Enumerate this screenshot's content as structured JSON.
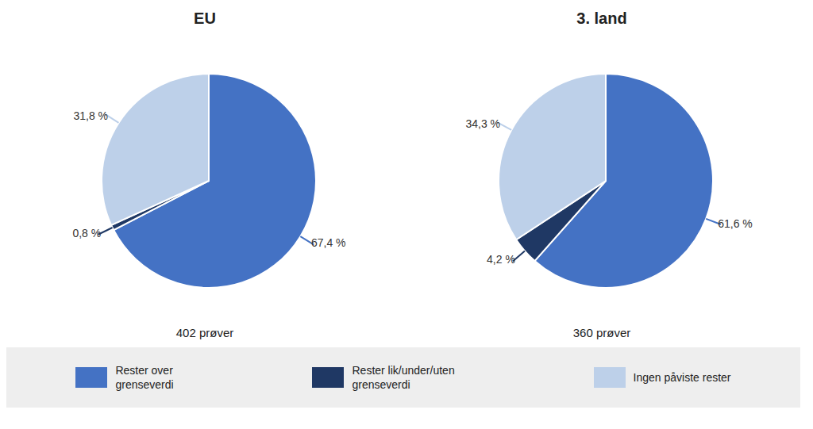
{
  "chart_data": [
    {
      "type": "pie",
      "title": "EU",
      "subtitle": "402 prøver",
      "categories": [
        "Rester over\ngrenseverdi",
        "Rester lik/under/uten\ngrenseverdi",
        "Ingen påviste rester"
      ],
      "values": [
        67.4,
        0.8,
        31.8
      ],
      "value_labels": [
        "67,4 %",
        "0,8 %",
        "31,8 %"
      ],
      "colors": [
        "#4472C4",
        "#1F3864",
        "#BDD0E9"
      ],
      "data_labels": true,
      "legend": "bottom"
    },
    {
      "type": "pie",
      "title": "3. land",
      "subtitle": "360 prøver",
      "categories": [
        "Rester over\ngrenseverdi",
        "Rester lik/under/uten\ngrenseverdi",
        "Ingen påviste rester"
      ],
      "values": [
        61.6,
        4.2,
        34.3
      ],
      "value_labels": [
        "61,6 %",
        "4,2 %",
        "34,3 %"
      ],
      "colors": [
        "#4472C4",
        "#1F3864",
        "#BDD0E9"
      ],
      "data_labels": true,
      "legend": "bottom"
    }
  ]
}
